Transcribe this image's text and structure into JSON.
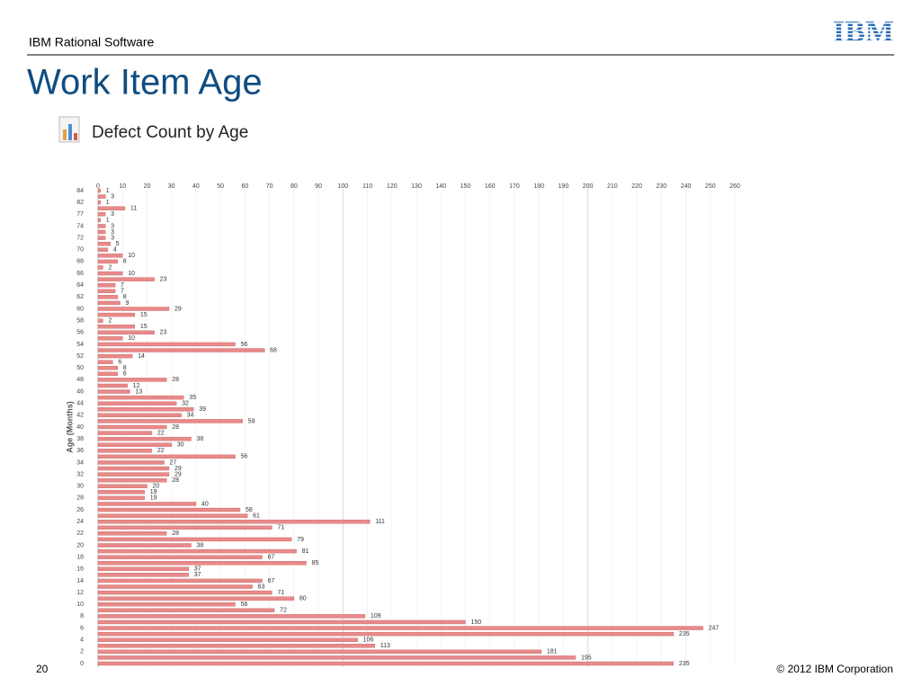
{
  "header": {
    "brand": "IBM Rational Software",
    "logo": "IBM"
  },
  "title": "Work Item Age",
  "chart_data": {
    "type": "hbar",
    "title": "Defect Count by Age",
    "ylabel": "Age (Months)",
    "categories": [
      "84",
      null,
      "82",
      null,
      "77",
      null,
      "74",
      null,
      "72",
      null,
      "70",
      null,
      "68",
      null,
      "66",
      null,
      "64",
      null,
      "62",
      null,
      "60",
      null,
      "58",
      null,
      "56",
      null,
      "54",
      null,
      "52",
      null,
      "50",
      null,
      "48",
      null,
      "46",
      null,
      "44",
      null,
      "42",
      null,
      "40",
      null,
      "38",
      null,
      "36",
      null,
      "34",
      null,
      "32",
      null,
      "30",
      null,
      "28",
      null,
      "26",
      null,
      "24",
      null,
      "22",
      null,
      "20",
      null,
      "18",
      null,
      "16",
      null,
      "14",
      null,
      "12",
      null,
      "10",
      null,
      "8",
      null,
      "6",
      null,
      "4",
      null,
      "2",
      null,
      "0"
    ],
    "values": [
      1,
      3,
      1,
      11,
      3,
      1,
      3,
      3,
      3,
      5,
      4,
      10,
      8,
      2,
      10,
      23,
      7,
      7,
      8,
      9,
      29,
      15,
      2,
      15,
      23,
      10,
      56,
      68,
      14,
      6,
      8,
      8,
      28,
      12,
      13,
      35,
      32,
      39,
      34,
      59,
      28,
      22,
      38,
      30,
      22,
      56,
      27,
      29,
      29,
      28,
      20,
      19,
      19,
      40,
      58,
      61,
      111,
      71,
      28,
      79,
      38,
      81,
      67,
      85,
      37,
      37,
      67,
      63,
      71,
      80,
      56,
      72,
      109,
      150,
      247,
      235,
      106,
      113,
      181,
      195,
      235
    ],
    "color": "#e88a8a",
    "xlim": [
      0,
      260
    ],
    "xticks": [
      0,
      10,
      20,
      30,
      40,
      50,
      60,
      70,
      80,
      90,
      100,
      110,
      120,
      130,
      140,
      150,
      160,
      170,
      180,
      190,
      200,
      210,
      220,
      230,
      240,
      250,
      260
    ],
    "grid": true
  },
  "footer": {
    "page": "20",
    "copyright": "© 2012 IBM Corporation"
  }
}
